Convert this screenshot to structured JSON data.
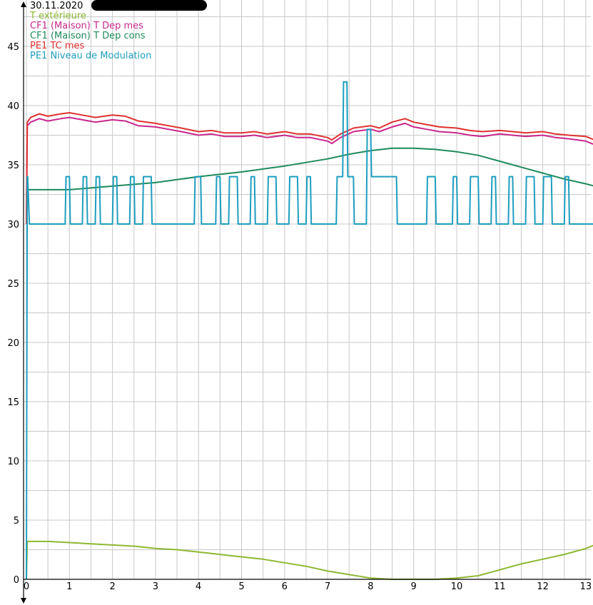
{
  "chart_data": {
    "type": "line",
    "title": "30.11.2020",
    "xlim": [
      0,
      13.2
    ],
    "ylim": [
      0,
      48
    ],
    "xticks": [
      "0",
      "1",
      "2",
      "3",
      "4",
      "5",
      "6",
      "7",
      "8",
      "9",
      "10",
      "11",
      "12",
      "13"
    ],
    "yticks": [
      "0",
      "5",
      "10",
      "15",
      "20",
      "25",
      "30",
      "35",
      "40",
      "45"
    ],
    "grid": true,
    "legend_position": "top-left",
    "series": [
      {
        "name": "T extérieure",
        "color": "#8db832",
        "x": [
          0,
          0.02,
          0.5,
          1,
          1.5,
          2,
          2.5,
          3,
          3.5,
          4,
          4.5,
          5,
          5.5,
          6,
          6.5,
          7,
          7.5,
          8,
          8.5,
          9,
          9.5,
          10,
          10.5,
          11,
          11.5,
          12,
          12.5,
          13,
          13.2
        ],
        "y": [
          0,
          3.2,
          3.2,
          3.1,
          3.0,
          2.9,
          2.8,
          2.6,
          2.5,
          2.3,
          2.1,
          1.9,
          1.7,
          1.4,
          1.1,
          0.7,
          0.4,
          0.1,
          0.0,
          0.0,
          0.0,
          0.1,
          0.3,
          0.8,
          1.3,
          1.7,
          2.1,
          2.6,
          2.9
        ]
      },
      {
        "name": "CF1 (Maison) T Dep mes",
        "color": "#c8268c",
        "x": [
          0,
          0.02,
          0.1,
          0.3,
          0.5,
          0.8,
          1,
          1.3,
          1.6,
          2,
          2.3,
          2.6,
          3,
          3.3,
          3.6,
          4,
          4.3,
          4.6,
          5,
          5.3,
          5.6,
          6,
          6.3,
          6.6,
          7,
          7.1,
          7.3,
          7.6,
          8,
          8.2,
          8.5,
          8.8,
          9,
          9.3,
          9.6,
          10,
          10.3,
          10.6,
          11,
          11.3,
          11.6,
          12,
          12.3,
          12.6,
          13,
          13.2
        ],
        "y": [
          30,
          38.3,
          38.6,
          38.9,
          38.7,
          38.9,
          39.0,
          38.8,
          38.6,
          38.8,
          38.7,
          38.3,
          38.2,
          38.0,
          37.8,
          37.5,
          37.6,
          37.4,
          37.4,
          37.5,
          37.3,
          37.5,
          37.3,
          37.3,
          37.0,
          36.8,
          37.3,
          37.8,
          38.0,
          37.8,
          38.2,
          38.5,
          38.2,
          38.0,
          37.8,
          37.7,
          37.5,
          37.4,
          37.6,
          37.5,
          37.4,
          37.5,
          37.3,
          37.2,
          37.0,
          36.7
        ]
      },
      {
        "name": "CF1 (Maison) T Dep cons",
        "color": "#1e8a5a",
        "x": [
          0,
          0.02,
          1,
          2,
          3,
          4,
          5,
          6,
          7,
          7.5,
          8,
          8.5,
          9,
          9.5,
          10,
          10.5,
          11,
          11.5,
          12,
          12.5,
          13,
          13.2
        ],
        "y": [
          30,
          32.9,
          32.9,
          33.2,
          33.5,
          34.0,
          34.4,
          34.9,
          35.5,
          35.9,
          36.2,
          36.4,
          36.4,
          36.3,
          36.1,
          35.8,
          35.3,
          34.8,
          34.3,
          33.8,
          33.4,
          33.2
        ]
      },
      {
        "name": "PE1 TC mes",
        "color": "#e03030",
        "x": [
          0,
          0.02,
          0.1,
          0.3,
          0.5,
          0.8,
          1,
          1.3,
          1.6,
          2,
          2.3,
          2.6,
          3,
          3.3,
          3.6,
          4,
          4.3,
          4.6,
          5,
          5.3,
          5.6,
          6,
          6.3,
          6.6,
          7,
          7.1,
          7.3,
          7.6,
          8,
          8.2,
          8.5,
          8.8,
          9,
          9.3,
          9.6,
          10,
          10.3,
          10.6,
          11,
          11.3,
          11.6,
          12,
          12.3,
          12.6,
          13,
          13.2
        ],
        "y": [
          30,
          38.6,
          39.0,
          39.3,
          39.1,
          39.3,
          39.4,
          39.2,
          39.0,
          39.2,
          39.1,
          38.7,
          38.5,
          38.3,
          38.1,
          37.8,
          37.9,
          37.7,
          37.7,
          37.8,
          37.6,
          37.8,
          37.6,
          37.6,
          37.3,
          37.1,
          37.6,
          38.1,
          38.3,
          38.1,
          38.6,
          38.9,
          38.6,
          38.4,
          38.2,
          38.1,
          37.9,
          37.8,
          37.9,
          37.8,
          37.7,
          37.8,
          37.6,
          37.5,
          37.4,
          37.1
        ]
      },
      {
        "name": "PE1 Niveau de Modulation",
        "color": "#1e9ebe",
        "x": [
          0,
          0.02,
          0.03,
          0.07,
          0.08,
          0.9,
          0.92,
          1,
          1.02,
          1.3,
          1.32,
          1.4,
          1.42,
          1.6,
          1.62,
          1.7,
          1.72,
          2,
          2.02,
          2.1,
          2.12,
          2.4,
          2.42,
          2.5,
          2.52,
          2.7,
          2.72,
          2.9,
          2.92,
          3.9,
          3.92,
          4.05,
          4.07,
          4.4,
          4.42,
          4.5,
          4.52,
          4.7,
          4.72,
          4.9,
          4.92,
          5.2,
          5.22,
          5.3,
          5.32,
          5.6,
          5.62,
          5.8,
          5.82,
          6.1,
          6.12,
          6.3,
          6.32,
          6.5,
          6.52,
          6.6,
          6.62,
          7.2,
          7.22,
          7.35,
          7.37,
          7.45,
          7.47,
          7.6,
          7.62,
          7.9,
          7.92,
          8.0,
          8.02,
          8.6,
          8.62,
          9.3,
          9.32,
          9.5,
          9.52,
          9.9,
          9.92,
          10.0,
          10.02,
          10.3,
          10.32,
          10.5,
          10.52,
          10.8,
          10.82,
          10.9,
          10.92,
          11.2,
          11.22,
          11.3,
          11.32,
          11.6,
          11.62,
          11.8,
          11.82,
          12.0,
          12.02,
          12.2,
          12.22,
          12.5,
          12.52,
          12.6,
          12.62,
          13.2
        ],
        "y": [
          0,
          34,
          34,
          30,
          30,
          30,
          34,
          34,
          30,
          30,
          34,
          34,
          30,
          30,
          34,
          34,
          30,
          30,
          34,
          34,
          30,
          30,
          34,
          34,
          30,
          30,
          34,
          34,
          30,
          30,
          34,
          34,
          30,
          30,
          34,
          34,
          30,
          30,
          34,
          34,
          30,
          30,
          34,
          34,
          30,
          30,
          34,
          34,
          30,
          30,
          34,
          34,
          30,
          30,
          34,
          34,
          30,
          30,
          34,
          34,
          42,
          42,
          34,
          34,
          30,
          30,
          38,
          38,
          34,
          34,
          30,
          30,
          34,
          34,
          30,
          30,
          34,
          34,
          30,
          30,
          34,
          34,
          30,
          30,
          34,
          34,
          30,
          30,
          34,
          34,
          30,
          30,
          34,
          34,
          30,
          30,
          34,
          34,
          30,
          30,
          34,
          34,
          30,
          30
        ]
      }
    ]
  }
}
